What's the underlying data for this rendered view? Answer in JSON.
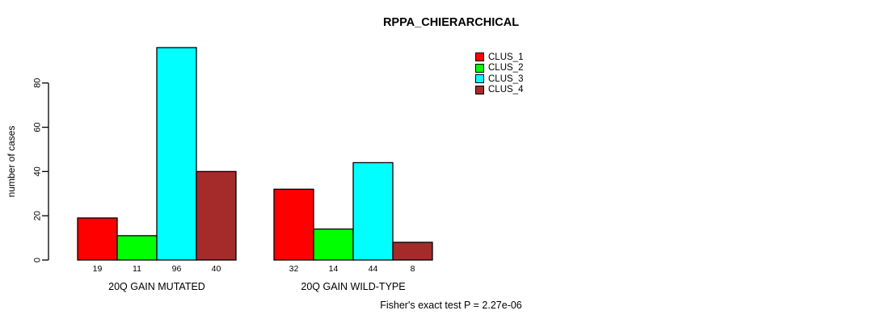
{
  "chart_data": {
    "type": "bar",
    "title": "RPPA_CHIERARCHICAL",
    "ylabel": "number of cases",
    "yticks": [
      0,
      20,
      40,
      60,
      80
    ],
    "ylim": [
      0,
      96
    ],
    "categories": [
      "20Q GAIN MUTATED",
      "20Q GAIN WILD-TYPE"
    ],
    "series": [
      {
        "name": "CLUS_1",
        "color": "#ff0000",
        "values": [
          19,
          32
        ]
      },
      {
        "name": "CLUS_2",
        "color": "#00ff00",
        "values": [
          11,
          14
        ]
      },
      {
        "name": "CLUS_3",
        "color": "#00ffff",
        "values": [
          96,
          44
        ]
      },
      {
        "name": "CLUS_4",
        "color": "#a52a2a",
        "values": [
          40,
          8
        ]
      }
    ],
    "bar_value_labels": [
      [
        19,
        11,
        96,
        40
      ],
      [
        32,
        14,
        44,
        8
      ]
    ],
    "annotation": "Fisher's exact test P = 2.27e-06",
    "legend_position": "top-right",
    "grid": false,
    "background_color": "#ffffff",
    "axis_color": "#000000"
  }
}
